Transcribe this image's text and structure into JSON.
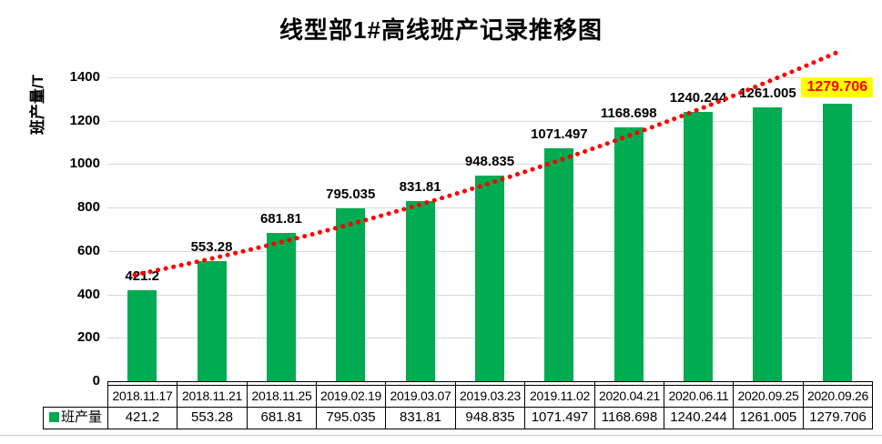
{
  "chart_data": {
    "type": "bar",
    "title": "线型部1#高线班产记录推移图",
    "ylabel": "班产量/T",
    "xlabel": "",
    "categories": [
      "2018.11.17",
      "2018.11.21",
      "2018.11.25",
      "2019.02.19",
      "2019.03.07",
      "2019.03.23",
      "2019.11.02",
      "2020.04.21",
      "2020.06.11",
      "2020.09.25",
      "2020.09.26"
    ],
    "values": [
      421.2,
      553.28,
      681.81,
      795.035,
      831.81,
      948.835,
      1071.497,
      1168.698,
      1240.244,
      1261.005,
      1279.706
    ],
    "value_labels": [
      "421.2",
      "553.28",
      "681.81",
      "795.035",
      "831.81",
      "948.835",
      "1071.497",
      "1168.698",
      "1240.244",
      "1261.005",
      "1279.706"
    ],
    "ylim": [
      0,
      1400
    ],
    "yticks": [
      0,
      200,
      400,
      600,
      800,
      1000,
      1200,
      1400
    ],
    "grid": true,
    "legend": {
      "label": "班产量",
      "position": "bottom-left-of-data-table"
    },
    "data_table_shown": true,
    "bar_color": "#00ab51",
    "gridline_color": "#d9d9d9",
    "trendline": {
      "type": "exponential",
      "style": "dotted",
      "color": "#ff0000"
    },
    "highlight_last_label": {
      "background": "#ffff00",
      "text_color": "#ff0000"
    }
  }
}
